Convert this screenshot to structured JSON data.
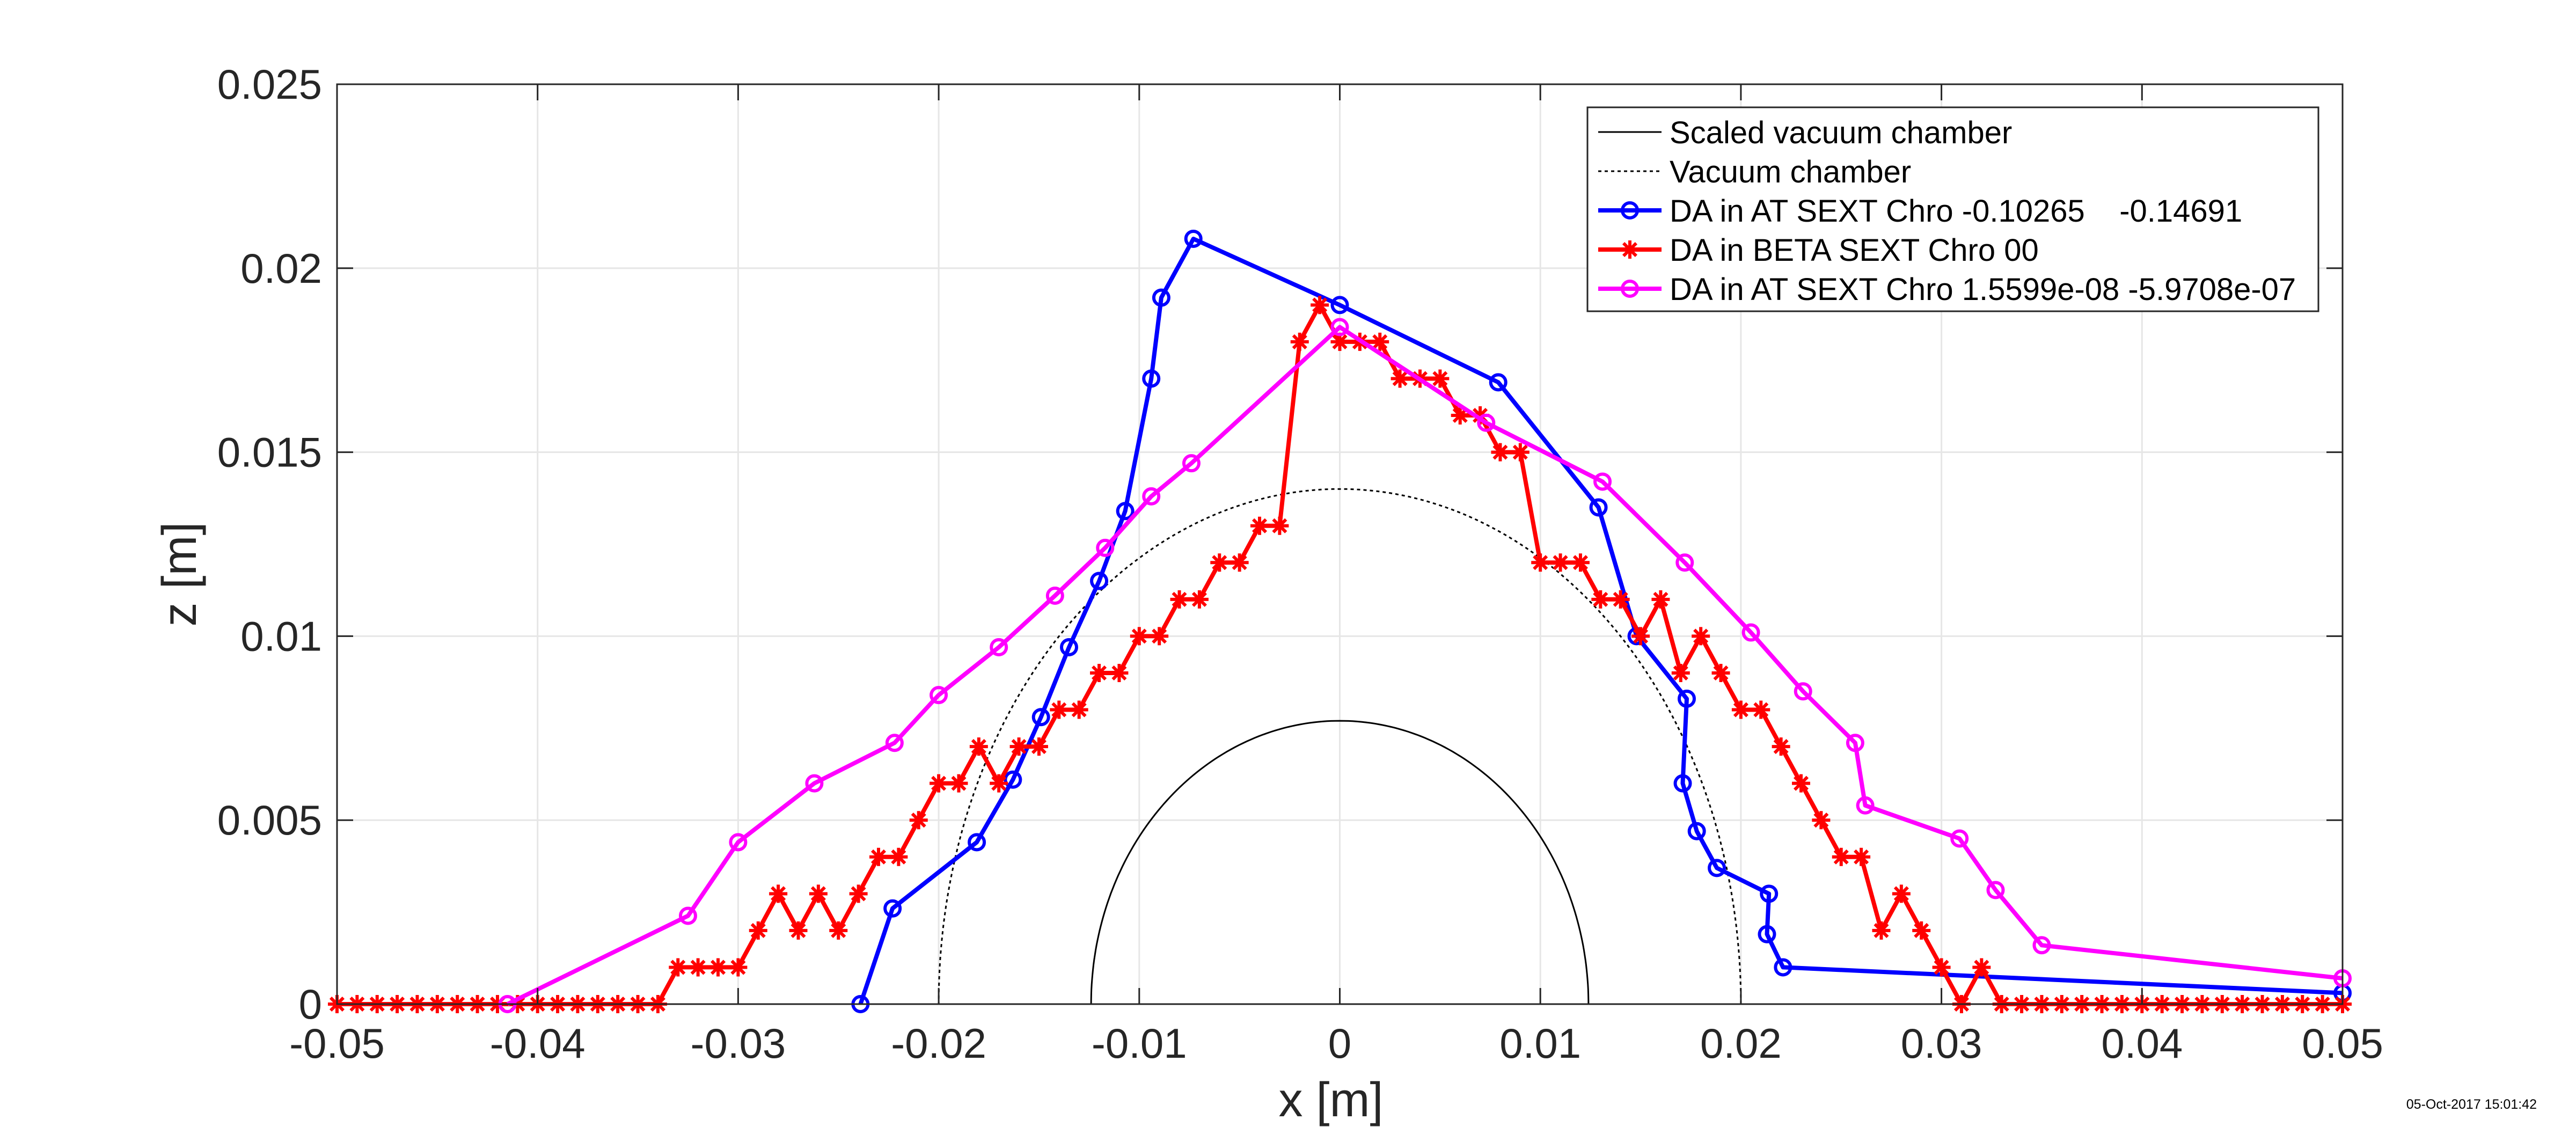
{
  "chart_data": {
    "type": "line",
    "title": "",
    "xlabel": "x [m]",
    "ylabel": "z [m]",
    "xlim": [
      -0.05,
      0.05
    ],
    "ylim": [
      0,
      0.025
    ],
    "x_ticks": [
      -0.05,
      -0.04,
      -0.03,
      -0.02,
      -0.01,
      0,
      0.01,
      0.02,
      0.03,
      0.04,
      0.05
    ],
    "x_tick_labels": [
      "-0.05",
      "-0.04",
      "-0.03",
      "-0.02",
      "-0.01",
      "0",
      "0.01",
      "0.02",
      "0.03",
      "0.04",
      "0.05"
    ],
    "y_ticks": [
      0,
      0.005,
      0.01,
      0.015,
      0.02,
      0.025
    ],
    "y_tick_labels": [
      "0",
      "0.005",
      "0.01",
      "0.015",
      "0.02",
      "0.025"
    ],
    "grid": true,
    "legend_position": "top-right",
    "timestamp": "05-Oct-2017 15:01:42",
    "series": [
      {
        "name": "Scaled vacuum chamber",
        "style": "solid-thin",
        "color": "#000000",
        "marker": "none",
        "ellipse": {
          "a": 0.0124,
          "b": 0.0077
        }
      },
      {
        "name": "Vacuum chamber",
        "style": "dotted-thin",
        "color": "#000000",
        "marker": "none",
        "ellipse": {
          "a": 0.02,
          "b": 0.014
        }
      },
      {
        "name": "DA in AT SEXT Chro -0.10265    -0.14691",
        "style": "solid",
        "color": "#0000ff",
        "marker": "circle",
        "x": [
          -0.0239,
          -0.0223,
          -0.0181,
          -0.0163,
          -0.0149,
          -0.0135,
          -0.012,
          -0.0107,
          -0.0094,
          -0.0089,
          -0.0073,
          0.0,
          0.0079,
          0.0129,
          0.0148,
          0.0173,
          0.0171,
          0.0178,
          0.0188,
          0.0214,
          0.0213,
          0.0221,
          0.05
        ],
        "y": [
          0.0,
          0.0026,
          0.0044,
          0.0061,
          0.0078,
          0.0097,
          0.0115,
          0.0134,
          0.017,
          0.0192,
          0.0208,
          0.019,
          0.0169,
          0.0135,
          0.01,
          0.0083,
          0.006,
          0.0047,
          0.0037,
          0.003,
          0.0019,
          0.001,
          0.0003
        ]
      },
      {
        "name": "DA in BETA SEXT Chro 00",
        "style": "solid",
        "color": "#ff0000",
        "marker": "asterisk",
        "x": [
          -0.05,
          -0.049,
          -0.048,
          -0.047,
          -0.046,
          -0.045,
          -0.044,
          -0.043,
          -0.042,
          -0.041,
          -0.04,
          -0.039,
          -0.038,
          -0.037,
          -0.036,
          -0.035,
          -0.034,
          -0.033,
          -0.032,
          -0.031,
          -0.03,
          -0.029,
          -0.028,
          -0.027,
          -0.026,
          -0.025,
          -0.024,
          -0.023,
          -0.022,
          -0.021,
          -0.02,
          -0.019,
          -0.018,
          -0.017,
          -0.016,
          -0.015,
          -0.014,
          -0.013,
          -0.012,
          -0.011,
          -0.01,
          -0.009,
          -0.008,
          -0.007,
          -0.006,
          -0.005,
          -0.004,
          -0.003,
          -0.002,
          -0.001,
          0.0,
          0.001,
          0.002,
          0.003,
          0.004,
          0.005,
          0.006,
          0.007,
          0.008,
          0.009,
          0.01,
          0.011,
          0.012,
          0.013,
          0.014,
          0.015,
          0.016,
          0.017,
          0.018,
          0.019,
          0.02,
          0.021,
          0.022,
          0.023,
          0.024,
          0.025,
          0.026,
          0.027,
          0.028,
          0.029,
          0.03,
          0.031,
          0.032,
          0.033,
          0.034,
          0.035,
          0.036,
          0.037,
          0.038,
          0.039,
          0.04,
          0.041,
          0.042,
          0.043,
          0.044,
          0.045,
          0.046,
          0.047,
          0.048,
          0.049,
          0.05
        ],
        "y": [
          0.0,
          0.0,
          0.0,
          0.0,
          0.0,
          0.0,
          0.0,
          0.0,
          0.0,
          0.0,
          0.0,
          0.0,
          0.0,
          0.0,
          0.0,
          0.0,
          0.0,
          0.001,
          0.001,
          0.001,
          0.001,
          0.002,
          0.003,
          0.002,
          0.003,
          0.002,
          0.003,
          0.004,
          0.004,
          0.005,
          0.006,
          0.006,
          0.007,
          0.006,
          0.007,
          0.007,
          0.008,
          0.008,
          0.009,
          0.009,
          0.01,
          0.01,
          0.011,
          0.011,
          0.012,
          0.012,
          0.013,
          0.013,
          0.018,
          0.019,
          0.018,
          0.018,
          0.018,
          0.017,
          0.017,
          0.017,
          0.016,
          0.016,
          0.015,
          0.015,
          0.012,
          0.012,
          0.012,
          0.011,
          0.011,
          0.01,
          0.011,
          0.009,
          0.01,
          0.009,
          0.008,
          0.008,
          0.007,
          0.006,
          0.005,
          0.004,
          0.004,
          0.002,
          0.003,
          0.002,
          0.001,
          0.0,
          0.001,
          0.0,
          0.0,
          0.0,
          0.0,
          0.0,
          0.0,
          0.0,
          0.0,
          0.0,
          0.0,
          0.0,
          0.0,
          0.0,
          0.0,
          0.0,
          0.0,
          0.0,
          0.0
        ]
      },
      {
        "name": "DA in AT SEXT Chro 1.5599e-08 -5.9708e-07",
        "style": "solid",
        "color": "#ff00ff",
        "marker": "circle",
        "x": [
          -0.0415,
          -0.0325,
          -0.03,
          -0.0262,
          -0.0222,
          -0.02,
          -0.017,
          -0.0142,
          -0.0117,
          -0.0094,
          -0.0074,
          0.0,
          0.0073,
          0.0131,
          0.0172,
          0.0205,
          0.0231,
          0.0257,
          0.0262,
          0.0309,
          0.0327,
          0.035,
          0.05
        ],
        "y": [
          0.0,
          0.0024,
          0.0044,
          0.006,
          0.0071,
          0.0084,
          0.0097,
          0.0111,
          0.0124,
          0.0138,
          0.0147,
          0.0184,
          0.0158,
          0.0142,
          0.012,
          0.0101,
          0.0085,
          0.0071,
          0.0054,
          0.0045,
          0.0031,
          0.0016,
          0.0007
        ]
      }
    ]
  }
}
